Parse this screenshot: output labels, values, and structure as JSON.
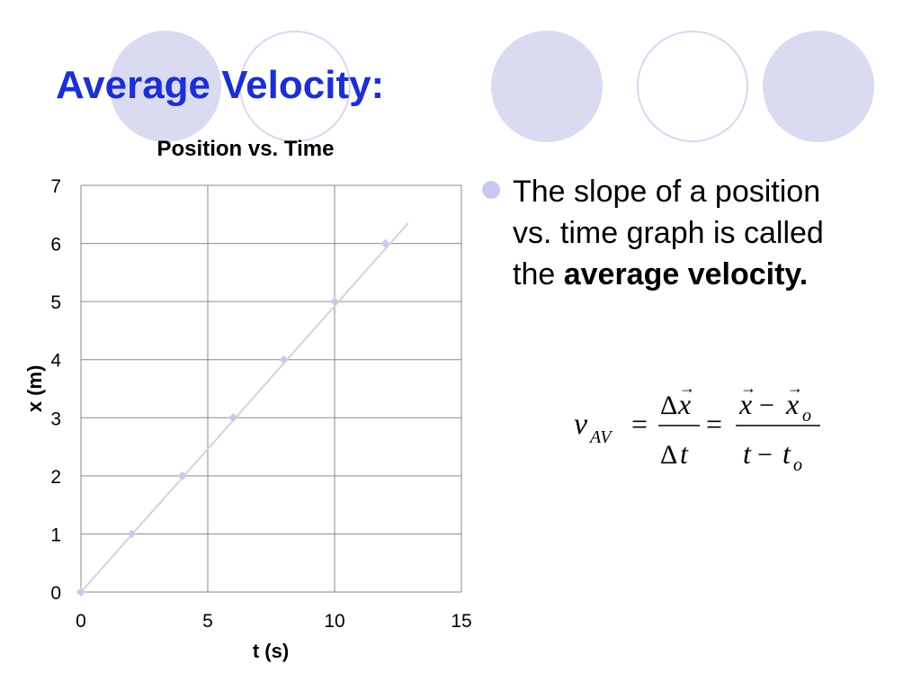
{
  "slide": {
    "title": "Average Velocity:",
    "bullet": {
      "text_before": "The slope of a position vs. time graph is called the ",
      "bold_text": "average velocity."
    },
    "formula": {
      "v": "v",
      "v_sub": "AV",
      "equals": "=",
      "delta": "Δ",
      "x": "x",
      "t": "t",
      "minus": "−",
      "sub_o": "o"
    }
  },
  "chart_data": {
    "type": "scatter",
    "title": "Position vs. Time",
    "xlabel": "t (s)",
    "ylabel": "x (m)",
    "xlim": [
      0,
      15
    ],
    "ylim": [
      0,
      7
    ],
    "xticks": [
      0,
      5,
      10,
      15
    ],
    "yticks": [
      0,
      1,
      2,
      3,
      4,
      5,
      6,
      7
    ],
    "grid": true,
    "legend": "none",
    "series": [
      {
        "x": [
          0,
          2,
          4,
          6,
          8,
          10,
          12
        ],
        "y": [
          0,
          1,
          2,
          3,
          4,
          5,
          6
        ],
        "color": "#c8c8f0"
      }
    ],
    "trendline": {
      "x": [
        0,
        12.9
      ],
      "y": [
        0,
        6.35
      ],
      "color": "#d4d4d4"
    }
  }
}
